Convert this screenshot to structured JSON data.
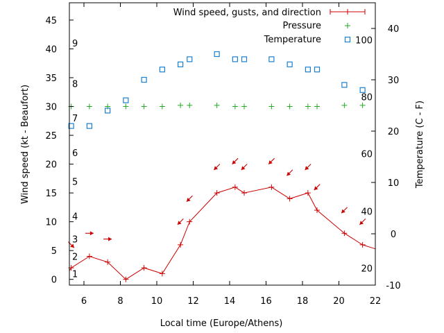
{
  "chart_data": {
    "type": "line",
    "xlabel": "Local time (Europe/Athens)",
    "ylabel": "Wind speed (kt - Beaufort)",
    "y2label": "Temperature (C - F)",
    "xlim": [
      5.2,
      22
    ],
    "ylim": [
      -1,
      48
    ],
    "y2lim": [
      -10,
      45
    ],
    "xticks": [
      "6",
      "8",
      "10",
      "12",
      "14",
      "16",
      "18",
      "20",
      "22"
    ],
    "xtick_values": [
      6,
      8,
      10,
      12,
      14,
      16,
      18,
      20,
      22
    ],
    "yticks": [
      "0",
      "5",
      "10",
      "15",
      "20",
      "25",
      "30",
      "35",
      "40",
      "45"
    ],
    "ytick_values": [
      0,
      5,
      10,
      15,
      20,
      25,
      30,
      35,
      40,
      45
    ],
    "y2ticks": [
      "-10",
      "0",
      "10",
      "20",
      "30",
      "40"
    ],
    "y2tick_values": [
      -10,
      0,
      10,
      20,
      30,
      40
    ],
    "beaufort_labels": [
      {
        "label": "1",
        "y": 1
      },
      {
        "label": "2",
        "y": 4
      },
      {
        "label": "3",
        "y": 7
      },
      {
        "label": "4",
        "y": 11
      },
      {
        "label": "5",
        "y": 17
      },
      {
        "label": "6",
        "y": 22
      },
      {
        "label": "7",
        "y": 28
      },
      {
        "label": "8",
        "y": 34
      },
      {
        "label": "9",
        "y": 41
      }
    ],
    "fahrenheit_labels": [
      {
        "label": "20",
        "y2": -6.7
      },
      {
        "label": "40",
        "y2": 4.4
      },
      {
        "label": "60",
        "y2": 15.6
      },
      {
        "label": "80",
        "y2": 26.7
      },
      {
        "label": "100",
        "y2": 37.8
      }
    ],
    "legend_position": "top-right",
    "series": [
      {
        "name": "Wind speed, gusts, and direction",
        "axis": "y",
        "color": "#cc0000",
        "style": "line-points",
        "x": [
          5.2,
          5.3,
          6.3,
          7.3,
          8.3,
          9.3,
          10.3,
          11.3,
          11.8,
          13.3,
          14.3,
          14.8,
          16.3,
          17.3,
          18.3,
          18.8,
          20.3,
          21.3,
          22
        ],
        "values": [
          1.5,
          2,
          4,
          3,
          0,
          2,
          1,
          6,
          10,
          15,
          16,
          15,
          16,
          14,
          15,
          12,
          8,
          6,
          5.3
        ]
      },
      {
        "name": "Pressure",
        "axis": "y",
        "color": "#22aa22",
        "style": "points-plus",
        "x": [
          5.3,
          6.3,
          7.3,
          8.3,
          9.3,
          10.3,
          11.3,
          11.8,
          13.3,
          14.3,
          14.8,
          16.3,
          17.3,
          18.3,
          18.8,
          20.3,
          21.3
        ],
        "values": [
          30,
          30,
          30,
          30,
          30,
          30,
          30.2,
          30.2,
          30.2,
          30,
          30,
          30,
          30,
          30,
          30,
          30.2,
          30.2
        ]
      },
      {
        "name": "Temperature",
        "axis": "y2",
        "color": "#1a7fd0",
        "style": "points-square",
        "x": [
          5.3,
          6.3,
          7.3,
          8.3,
          9.3,
          10.3,
          11.3,
          11.8,
          13.3,
          14.3,
          14.8,
          16.3,
          17.3,
          18.3,
          18.8,
          20.3,
          21.3
        ],
        "values": [
          21,
          21,
          24,
          26,
          30,
          32,
          33,
          34,
          35,
          34,
          34,
          34,
          33,
          32,
          32,
          29,
          28
        ]
      }
    ],
    "wind_direction_arrows": [
      {
        "x": 5.3,
        "y": 6,
        "dir": "SE"
      },
      {
        "x": 6.3,
        "y": 8,
        "dir": "E"
      },
      {
        "x": 7.3,
        "y": 7,
        "dir": "E"
      },
      {
        "x": 11.3,
        "y": 10,
        "dir": "SW"
      },
      {
        "x": 11.8,
        "y": 14,
        "dir": "SW"
      },
      {
        "x": 13.3,
        "y": 19.5,
        "dir": "SW"
      },
      {
        "x": 14.3,
        "y": 20.5,
        "dir": "SW"
      },
      {
        "x": 14.8,
        "y": 19.5,
        "dir": "SW"
      },
      {
        "x": 16.3,
        "y": 20.5,
        "dir": "SW"
      },
      {
        "x": 17.3,
        "y": 18.5,
        "dir": "SW"
      },
      {
        "x": 18.3,
        "y": 19.5,
        "dir": "SW"
      },
      {
        "x": 18.8,
        "y": 16,
        "dir": "SW"
      },
      {
        "x": 20.3,
        "y": 12,
        "dir": "SW"
      },
      {
        "x": 21.3,
        "y": 10,
        "dir": "SW"
      }
    ]
  }
}
